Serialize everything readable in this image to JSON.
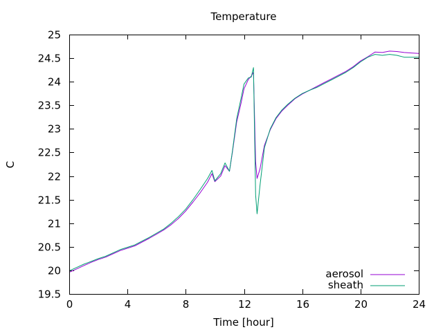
{
  "chart_data": {
    "type": "line",
    "title": "Temperature",
    "xlabel": "Time [hour]",
    "ylabel": "C",
    "xlim": [
      0,
      24
    ],
    "ylim": [
      19.5,
      25
    ],
    "x_ticks": [
      0,
      4,
      8,
      12,
      16,
      20,
      24
    ],
    "y_ticks": [
      19.5,
      20,
      20.5,
      21,
      21.5,
      22,
      22.5,
      23,
      23.5,
      24,
      24.5,
      25
    ],
    "x_tick_labels": [
      "0",
      "4",
      "8",
      "12",
      "16",
      "20",
      "24"
    ],
    "y_tick_labels": [
      "19.5",
      "20",
      "20.5",
      "21",
      "21.5",
      "22",
      "22.5",
      "23",
      "23.5",
      "24",
      "24.5",
      "25"
    ],
    "grid": false,
    "legend_position": "bottom-right",
    "series": [
      {
        "name": "aerosol",
        "color": "#9400d3",
        "x": [
          0,
          0.5,
          1,
          1.5,
          2,
          2.5,
          3,
          3.5,
          4,
          4.5,
          5,
          5.5,
          6,
          6.5,
          7,
          7.5,
          8,
          8.5,
          9,
          9.5,
          9.8,
          10,
          10.4,
          10.7,
          11,
          11.2,
          11.5,
          11.8,
          12,
          12.3,
          12.5,
          12.65,
          12.7,
          12.8,
          12.9,
          13.1,
          13.4,
          13.8,
          14.2,
          14.6,
          15,
          15.5,
          16,
          16.5,
          17,
          17.5,
          18,
          18.5,
          19,
          19.5,
          20,
          20.5,
          21,
          21.5,
          22,
          22.5,
          23,
          23.5,
          24
        ],
        "y": [
          19.96,
          20.03,
          20.1,
          20.17,
          20.23,
          20.28,
          20.35,
          20.42,
          20.47,
          20.52,
          20.6,
          20.68,
          20.77,
          20.86,
          20.97,
          21.1,
          21.26,
          21.45,
          21.65,
          21.87,
          22.05,
          21.88,
          22.0,
          22.22,
          22.1,
          22.5,
          23.15,
          23.55,
          23.85,
          24.05,
          24.12,
          24.2,
          23.6,
          22.3,
          21.95,
          22.15,
          22.65,
          22.98,
          23.22,
          23.38,
          23.5,
          23.64,
          23.74,
          23.82,
          23.9,
          23.98,
          24.06,
          24.14,
          24.22,
          24.32,
          24.44,
          24.53,
          24.63,
          24.62,
          24.65,
          24.64,
          24.62,
          24.61,
          24.6
        ]
      },
      {
        "name": "sheath",
        "color": "#009e73",
        "x": [
          0,
          0.5,
          1,
          1.5,
          2,
          2.5,
          3,
          3.5,
          4,
          4.5,
          5,
          5.5,
          6,
          6.5,
          7,
          7.5,
          8,
          8.5,
          9,
          9.5,
          9.8,
          10,
          10.4,
          10.7,
          11,
          11.2,
          11.5,
          11.8,
          12,
          12.3,
          12.5,
          12.65,
          12.7,
          12.8,
          12.9,
          13.1,
          13.4,
          13.8,
          14.2,
          14.6,
          15,
          15.5,
          16,
          16.5,
          17,
          17.5,
          18,
          18.5,
          19,
          19.5,
          20,
          20.5,
          21,
          21.5,
          22,
          22.5,
          23,
          23.5,
          24
        ],
        "y": [
          19.99,
          20.06,
          20.13,
          20.19,
          20.25,
          20.3,
          20.37,
          20.44,
          20.49,
          20.54,
          20.62,
          20.7,
          20.79,
          20.88,
          21.0,
          21.14,
          21.3,
          21.5,
          21.72,
          21.95,
          22.12,
          21.9,
          22.05,
          22.28,
          22.1,
          22.52,
          23.22,
          23.65,
          23.95,
          24.08,
          24.1,
          24.3,
          23.4,
          21.6,
          21.2,
          21.8,
          22.6,
          23.0,
          23.24,
          23.4,
          23.52,
          23.65,
          23.75,
          23.82,
          23.88,
          23.96,
          24.04,
          24.12,
          24.2,
          24.3,
          24.42,
          24.52,
          24.58,
          24.56,
          24.58,
          24.56,
          24.52,
          24.52,
          24.52
        ]
      }
    ]
  }
}
